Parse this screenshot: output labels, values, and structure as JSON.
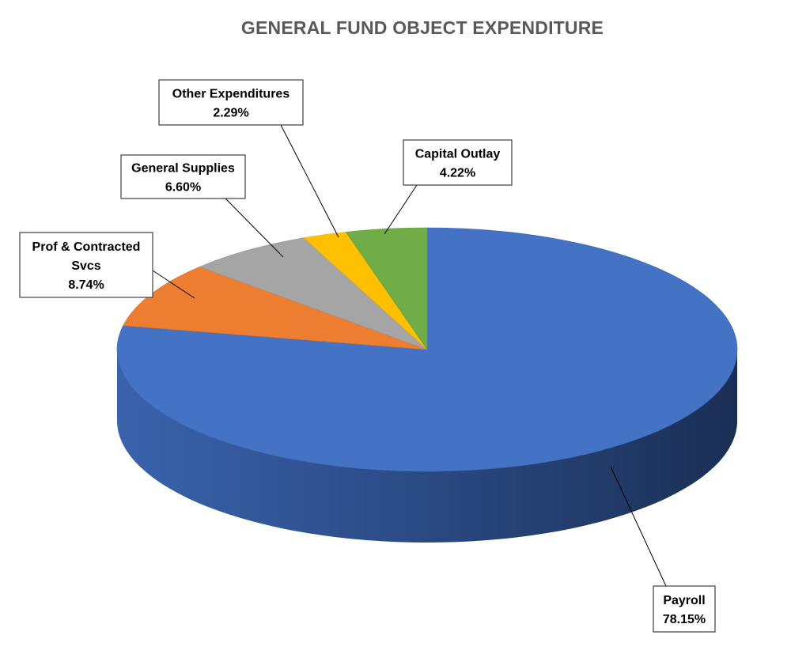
{
  "chart_data": {
    "type": "pie",
    "title": "GENERAL FUND OBJECT EXPENDITURE",
    "start_angle_deg": 0,
    "direction": "clockwise",
    "style": "3d",
    "slices": [
      {
        "name": "Payroll",
        "label_lines": [
          "Payroll"
        ],
        "value": 78.15,
        "value_label": "78.15%",
        "color": "#4472C4"
      },
      {
        "name": "Prof & Contracted Svcs",
        "label_lines": [
          "Prof & Contracted",
          "Svcs"
        ],
        "value": 8.74,
        "value_label": "8.74%",
        "color": "#ED7D31"
      },
      {
        "name": "General Supplies",
        "label_lines": [
          "General Supplies"
        ],
        "value": 6.6,
        "value_label": "6.60%",
        "color": "#A5A5A5"
      },
      {
        "name": "Other Expenditures",
        "label_lines": [
          "Other Expenditures"
        ],
        "value": 2.29,
        "value_label": "2.29%",
        "color": "#FFC000"
      },
      {
        "name": "Capital Outlay",
        "label_lines": [
          "Capital Outlay"
        ],
        "value": 4.22,
        "value_label": "4.22%",
        "color": "#70AD47"
      }
    ]
  }
}
